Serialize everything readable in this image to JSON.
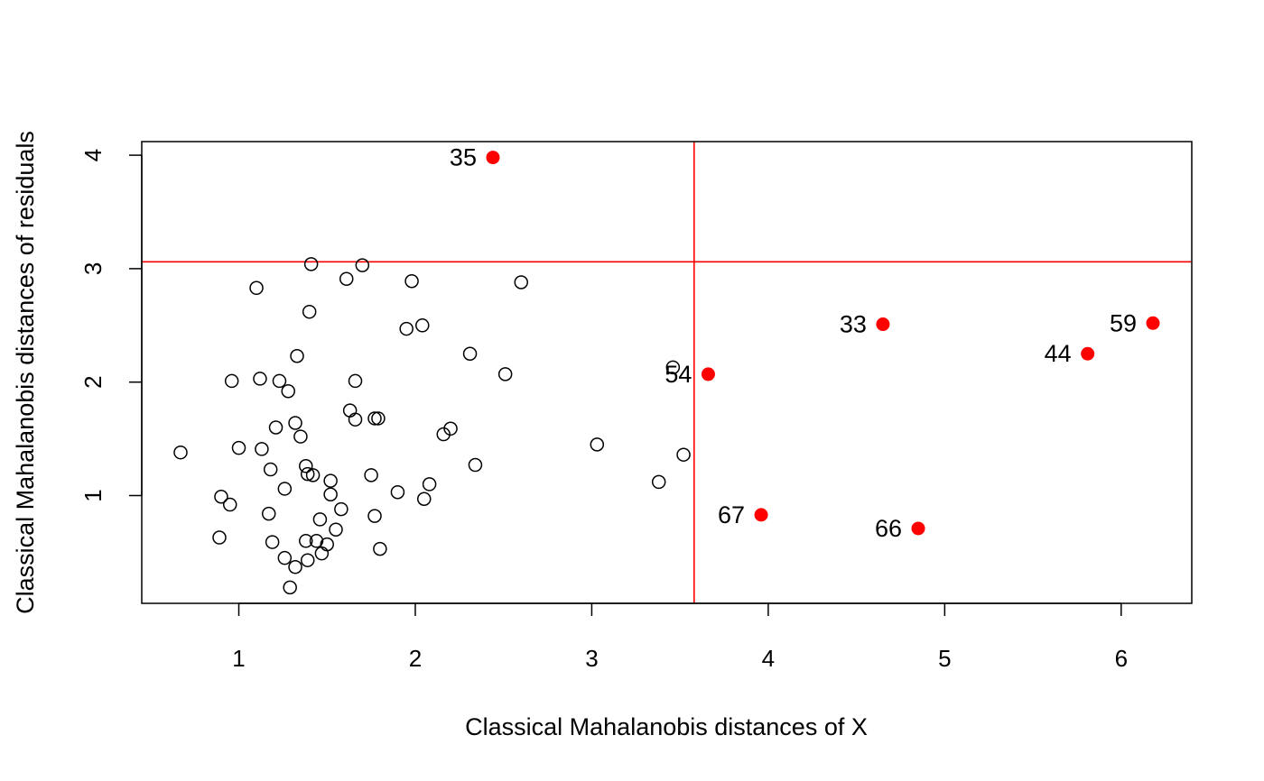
{
  "chart_data": {
    "type": "scatter",
    "xlabel": "Classical Mahalanobis distances of X",
    "ylabel": "Classical Mahalanobis distances of residuals",
    "xlim": [
      0.45,
      6.4
    ],
    "ylim": [
      0.05,
      4.12
    ],
    "x_ticks": [
      1,
      2,
      3,
      4,
      5,
      6
    ],
    "y_ticks": [
      1,
      2,
      3,
      4
    ],
    "x_tick_labels": [
      "1",
      "2",
      "3",
      "4",
      "5",
      "6"
    ],
    "y_tick_labels": [
      "1",
      "2",
      "3",
      "4"
    ],
    "cutoff_x": 3.58,
    "cutoff_y": 3.06,
    "cutoff_color": "#ff0000",
    "outlier_color": "#ff0000",
    "series": [
      {
        "points": [
          [
            0.67,
            1.38
          ],
          [
            0.89,
            0.63
          ],
          [
            0.9,
            0.99
          ],
          [
            0.95,
            0.92
          ],
          [
            0.96,
            2.01
          ],
          [
            1.0,
            1.42
          ],
          [
            1.1,
            2.83
          ],
          [
            1.12,
            2.03
          ],
          [
            1.13,
            1.41
          ],
          [
            1.17,
            0.84
          ],
          [
            1.18,
            1.23
          ],
          [
            1.19,
            0.59
          ],
          [
            1.21,
            1.6
          ],
          [
            1.23,
            2.01
          ],
          [
            1.26,
            1.06
          ],
          [
            1.26,
            0.45
          ],
          [
            1.28,
            1.92
          ],
          [
            1.29,
            0.19
          ],
          [
            1.32,
            1.64
          ],
          [
            1.32,
            0.37
          ],
          [
            1.33,
            2.23
          ],
          [
            1.35,
            1.52
          ],
          [
            1.38,
            1.26
          ],
          [
            1.38,
            0.6
          ],
          [
            1.39,
            1.19
          ],
          [
            1.39,
            0.43
          ],
          [
            1.4,
            2.62
          ],
          [
            1.41,
            3.04
          ],
          [
            1.42,
            1.18
          ],
          [
            1.44,
            0.6
          ],
          [
            1.46,
            0.79
          ],
          [
            1.47,
            0.49
          ],
          [
            1.5,
            0.57
          ],
          [
            1.52,
            1.13
          ],
          [
            1.52,
            1.01
          ],
          [
            1.55,
            0.7
          ],
          [
            1.58,
            0.88
          ],
          [
            1.61,
            2.91
          ],
          [
            1.63,
            1.75
          ],
          [
            1.66,
            1.67
          ],
          [
            1.66,
            2.01
          ],
          [
            1.7,
            3.03
          ],
          [
            1.75,
            1.18
          ],
          [
            1.77,
            1.68
          ],
          [
            1.77,
            0.82
          ],
          [
            1.79,
            1.68
          ],
          [
            1.8,
            0.53
          ],
          [
            1.9,
            1.03
          ],
          [
            1.95,
            2.47
          ],
          [
            1.98,
            2.89
          ],
          [
            2.04,
            2.5
          ],
          [
            2.05,
            0.97
          ],
          [
            2.08,
            1.1
          ],
          [
            2.16,
            1.54
          ],
          [
            2.2,
            1.59
          ],
          [
            2.31,
            2.25
          ],
          [
            2.34,
            1.27
          ],
          [
            2.51,
            2.07
          ],
          [
            2.6,
            2.88
          ],
          [
            3.03,
            1.45
          ],
          [
            3.38,
            1.12
          ],
          [
            3.46,
            2.13
          ],
          [
            3.52,
            1.36
          ]
        ]
      },
      {
        "points": [
          [
            2.44,
            3.98
          ],
          [
            3.66,
            2.07
          ],
          [
            3.96,
            0.83
          ],
          [
            4.65,
            2.51
          ],
          [
            4.85,
            0.71
          ],
          [
            5.81,
            2.25
          ],
          [
            6.18,
            2.52
          ]
        ],
        "labels": [
          "35",
          "54",
          "67",
          "33",
          "66",
          "44",
          "59"
        ]
      }
    ]
  }
}
